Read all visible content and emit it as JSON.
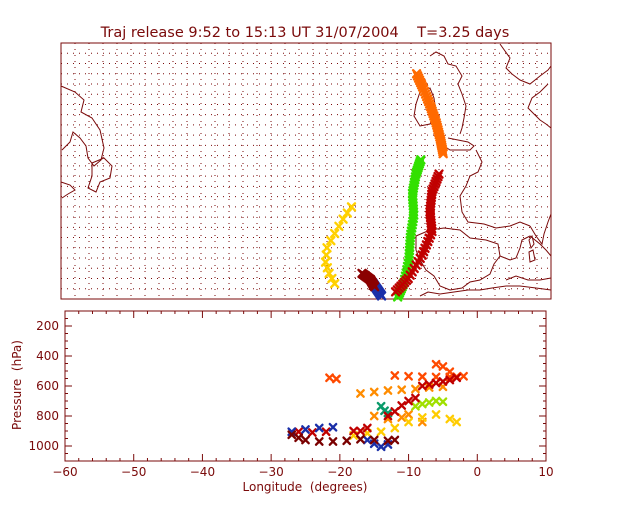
{
  "chart_data": [
    {
      "type": "map",
      "title": "Traj release 9:52 to 15:13 UT 31/07/2004    T=3.25 days",
      "projection": "lat-lon",
      "grid": true,
      "land_color": "#7a0a0a",
      "trajectory_tracks": [
        {
          "name": "",
          "color": "#ff6a00",
          "marker": "x",
          "points": [
            [
              -9.2,
              62.0
            ],
            [
              -8.2,
              60.5
            ],
            [
              -7.2,
              58.8
            ],
            [
              -6.4,
              57.2
            ],
            [
              -5.8,
              55.6
            ],
            [
              -5.4,
              54.2
            ]
          ]
        },
        {
          "name": "",
          "color": "#ffd000",
          "marker": "x",
          "points": [
            [
              -18.5,
              49.0
            ],
            [
              -19.7,
              47.8
            ],
            [
              -20.9,
              46.4
            ],
            [
              -22.0,
              45.0
            ],
            [
              -22.2,
              43.6
            ],
            [
              -21.7,
              42.5
            ],
            [
              -20.9,
              41.5
            ]
          ]
        },
        {
          "name": "",
          "color": "#33e000",
          "marker": "x",
          "points": [
            [
              -8.6,
              53.6
            ],
            [
              -9.3,
              52.2
            ],
            [
              -9.8,
              50.3
            ],
            [
              -9.6,
              48.2
            ],
            [
              -10.1,
              46.0
            ],
            [
              -10.3,
              43.8
            ],
            [
              -11.0,
              41.6
            ],
            [
              -11.9,
              40.2
            ]
          ]
        },
        {
          "name": "",
          "color": "#c00000",
          "marker": "x",
          "points": [
            [
              -6.0,
              52.2
            ],
            [
              -7.0,
              50.5
            ],
            [
              -7.3,
              48.5
            ],
            [
              -7.0,
              46.6
            ],
            [
              -8.4,
              44.3
            ],
            [
              -10.4,
              42.0
            ],
            [
              -12.2,
              40.7
            ]
          ]
        },
        {
          "name": "",
          "color": "#1a2fa8",
          "marker": "x",
          "points": [
            [
              -15.5,
              41.6
            ],
            [
              -14.8,
              40.9
            ],
            [
              -14.2,
              40.3
            ]
          ]
        },
        {
          "name": "",
          "color": "#8b0000",
          "marker": "x",
          "points": [
            [
              -17.0,
              42.5
            ],
            [
              -15.8,
              41.9
            ],
            [
              -15.2,
              41.2
            ]
          ]
        }
      ]
    },
    {
      "type": "scatter",
      "title": "",
      "xlabel": "Longitude  (degrees)",
      "ylabel": "Pressure  (hPa)",
      "xlim": [
        -60,
        10
      ],
      "ylim": [
        1100,
        100
      ],
      "xticks": [
        -60,
        -50,
        -40,
        -30,
        -20,
        -10,
        0,
        10
      ],
      "yticks": [
        200,
        400,
        600,
        800,
        1000
      ],
      "marker": "x",
      "series": [
        {
          "name": "",
          "color": "#ff4a00",
          "points": [
            [
              -21.5,
              545
            ],
            [
              -20.5,
              553
            ],
            [
              -12,
              530
            ],
            [
              -10,
              535
            ],
            [
              -8,
              538
            ],
            [
              -6,
              540
            ],
            [
              -4,
              540
            ],
            [
              -3,
              538
            ],
            [
              -2,
              535
            ],
            [
              -4,
              505
            ],
            [
              -6,
              455
            ],
            [
              -5,
              470
            ]
          ]
        },
        {
          "name": "",
          "color": "#ff8c00",
          "points": [
            [
              -17,
              650
            ],
            [
              -15,
              640
            ],
            [
              -13,
              630
            ],
            [
              -11,
              625
            ],
            [
              -9,
              620
            ],
            [
              -7,
              610
            ],
            [
              -5,
              605
            ],
            [
              -15,
              800
            ],
            [
              -13,
              820
            ],
            [
              -11,
              810
            ],
            [
              -10,
              790
            ],
            [
              -8,
              840
            ]
          ]
        },
        {
          "name": "",
          "color": "#ffcc00",
          "points": [
            [
              -18,
              930
            ],
            [
              -16,
              915
            ],
            [
              -14,
              905
            ],
            [
              -12,
              880
            ],
            [
              -10,
              840
            ],
            [
              -8,
              810
            ],
            [
              -6,
              790
            ],
            [
              -4,
              820
            ],
            [
              -3,
              840
            ]
          ]
        },
        {
          "name": "",
          "color": "#a0e000",
          "points": [
            [
              -9,
              735
            ],
            [
              -8,
              720
            ],
            [
              -7,
              710
            ],
            [
              -6,
              700
            ],
            [
              -5,
              705
            ]
          ]
        },
        {
          "name": "",
          "color": "#0a9a6a",
          "points": [
            [
              -14,
              735
            ],
            [
              -13.5,
              765
            ],
            [
              -13,
              780
            ]
          ]
        },
        {
          "name": "",
          "color": "#c00000",
          "points": [
            [
              -8,
              600
            ],
            [
              -7,
              590
            ],
            [
              -6,
              580
            ],
            [
              -5,
              570
            ],
            [
              -4,
              560
            ],
            [
              -3,
              545
            ],
            [
              -9,
              680
            ],
            [
              -10,
              700
            ],
            [
              -11,
              730
            ],
            [
              -12,
              770
            ],
            [
              -13,
              800
            ],
            [
              -16,
              880
            ],
            [
              -17,
              900
            ],
            [
              -18,
              900
            ],
            [
              -22,
              905
            ],
            [
              -24,
              910
            ],
            [
              -26,
              905
            ]
          ]
        },
        {
          "name": "",
          "color": "#1a2fa8",
          "points": [
            [
              -27,
              905
            ],
            [
              -25,
              890
            ],
            [
              -23,
              880
            ],
            [
              -21,
              875
            ],
            [
              -16,
              960
            ],
            [
              -15,
              985
            ],
            [
              -14,
              1005
            ],
            [
              -13,
              990
            ]
          ]
        },
        {
          "name": "",
          "color": "#7a0000",
          "points": [
            [
              -27,
              925
            ],
            [
              -26,
              945
            ],
            [
              -25,
              960
            ],
            [
              -23,
              970
            ],
            [
              -21,
              970
            ],
            [
              -19,
              965
            ],
            [
              -17,
              955
            ],
            [
              -15,
              960
            ],
            [
              -13,
              965
            ],
            [
              -12,
              960
            ]
          ]
        }
      ]
    }
  ]
}
